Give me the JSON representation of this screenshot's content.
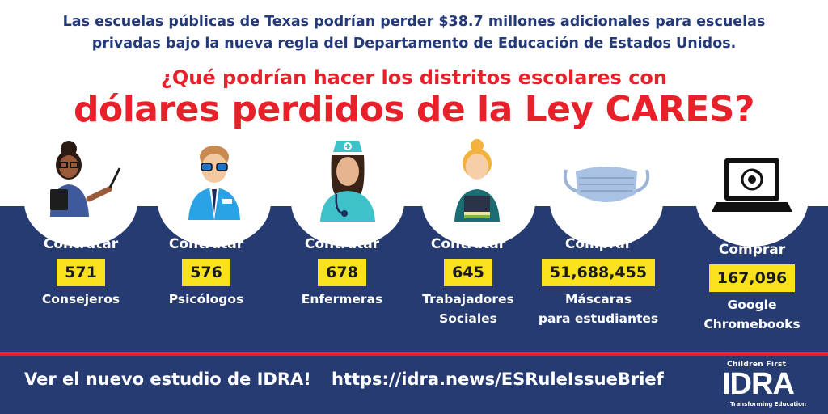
{
  "intro": {
    "line1": "Las escuelas públicas de Texas podrían perder $38.7 millones adicionales para escuelas",
    "line2": "privadas bajo la nueva regla del Departamento de Educación de Estados Unidos."
  },
  "question": "¿Qué podrían hacer los distritos escolares con",
  "headline": "dólares perdidos de la Ley CARES?",
  "items": [
    {
      "verb": "Contratar",
      "value": "571",
      "label1": "Consejeros",
      "label2": "",
      "icon": "counselor-icon"
    },
    {
      "verb": "Contratar",
      "value": "576",
      "label1": "Psicólogos",
      "label2": "",
      "icon": "psychologist-icon"
    },
    {
      "verb": "Contratar",
      "value": "678",
      "label1": "Enfermeras",
      "label2": "",
      "icon": "nurse-icon"
    },
    {
      "verb": "Contratar",
      "value": "645",
      "label1": "Trabajadores",
      "label2": "Sociales",
      "icon": "social-worker-icon"
    },
    {
      "verb": "Comprar",
      "value": "51,688,455",
      "label1": "Máscaras",
      "label2": "para estudiantes",
      "icon": "mask-icon"
    },
    {
      "verb": "Comprar",
      "value": "167,096",
      "label1": "Google",
      "label2": "Chromebooks",
      "icon": "chromebook-icon"
    }
  ],
  "footer": {
    "cta": "Ver el nuevo estudio de IDRA!",
    "url": "https://idra.news/ESRuleIssueBrief"
  },
  "logo": {
    "top": "Children First",
    "name": "IDRA",
    "bottom": "Transforming Education"
  },
  "colors": {
    "navy": "#263b72",
    "red": "#e8202a",
    "yellow": "#f9e21b"
  }
}
